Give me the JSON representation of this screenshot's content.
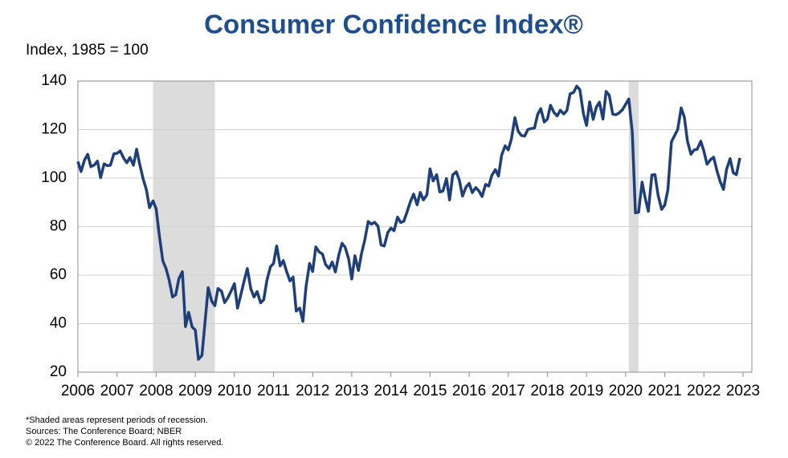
{
  "chart_data": {
    "type": "line",
    "title": "Consumer Confidence Index®",
    "y_axis_label": "Index, 1985 = 100",
    "footnotes": [
      "*Shaded areas represent periods of recession.",
      "Sources: The Conference Board; NBER",
      "© 2022 The Conference Board. All rights reserved."
    ],
    "xlim": [
      2006,
      2023
    ],
    "xticks": [
      2006,
      2007,
      2008,
      2009,
      2010,
      2011,
      2012,
      2013,
      2014,
      2015,
      2016,
      2017,
      2018,
      2019,
      2020,
      2021,
      2022,
      2023
    ],
    "ylim": [
      20,
      140
    ],
    "yticks": [
      20,
      40,
      60,
      80,
      100,
      120,
      140
    ],
    "grid": true,
    "recessions": [
      [
        2007.92,
        2009.5
      ],
      [
        2020.08,
        2020.33
      ]
    ],
    "recession_color": "#dcdcdc",
    "x": [
      2006.0,
      2006.08,
      2006.17,
      2006.25,
      2006.33,
      2006.42,
      2006.5,
      2006.58,
      2006.67,
      2006.75,
      2006.83,
      2006.92,
      2007.0,
      2007.08,
      2007.17,
      2007.25,
      2007.33,
      2007.42,
      2007.5,
      2007.58,
      2007.67,
      2007.75,
      2007.83,
      2007.92,
      2008.0,
      2008.08,
      2008.17,
      2008.25,
      2008.33,
      2008.42,
      2008.5,
      2008.58,
      2008.67,
      2008.75,
      2008.83,
      2008.92,
      2009.0,
      2009.08,
      2009.17,
      2009.25,
      2009.33,
      2009.42,
      2009.5,
      2009.58,
      2009.67,
      2009.75,
      2009.83,
      2009.92,
      2010.0,
      2010.08,
      2010.17,
      2010.25,
      2010.33,
      2010.42,
      2010.5,
      2010.58,
      2010.67,
      2010.75,
      2010.83,
      2010.92,
      2011.0,
      2011.08,
      2011.17,
      2011.25,
      2011.33,
      2011.42,
      2011.5,
      2011.58,
      2011.67,
      2011.75,
      2011.83,
      2011.92,
      2012.0,
      2012.08,
      2012.17,
      2012.25,
      2012.33,
      2012.42,
      2012.5,
      2012.58,
      2012.67,
      2012.75,
      2012.83,
      2012.92,
      2013.0,
      2013.08,
      2013.17,
      2013.25,
      2013.33,
      2013.42,
      2013.5,
      2013.58,
      2013.67,
      2013.75,
      2013.83,
      2013.92,
      2014.0,
      2014.08,
      2014.17,
      2014.25,
      2014.33,
      2014.42,
      2014.5,
      2014.58,
      2014.67,
      2014.75,
      2014.83,
      2014.92,
      2015.0,
      2015.08,
      2015.17,
      2015.25,
      2015.33,
      2015.42,
      2015.5,
      2015.58,
      2015.67,
      2015.75,
      2015.83,
      2015.92,
      2016.0,
      2016.08,
      2016.17,
      2016.25,
      2016.33,
      2016.42,
      2016.5,
      2016.58,
      2016.67,
      2016.75,
      2016.83,
      2016.92,
      2017.0,
      2017.08,
      2017.17,
      2017.25,
      2017.33,
      2017.42,
      2017.5,
      2017.58,
      2017.67,
      2017.75,
      2017.83,
      2017.92,
      2018.0,
      2018.08,
      2018.17,
      2018.25,
      2018.33,
      2018.42,
      2018.5,
      2018.58,
      2018.67,
      2018.75,
      2018.83,
      2018.92,
      2019.0,
      2019.08,
      2019.17,
      2019.25,
      2019.33,
      2019.42,
      2019.5,
      2019.58,
      2019.67,
      2019.75,
      2019.83,
      2019.92,
      2020.0,
      2020.08,
      2020.17,
      2020.25,
      2020.33,
      2020.42,
      2020.5,
      2020.58,
      2020.67,
      2020.75,
      2020.83,
      2020.92,
      2021.0,
      2021.08,
      2021.17,
      2021.25,
      2021.33,
      2021.42,
      2021.5,
      2021.58,
      2021.67,
      2021.75,
      2021.83,
      2021.92,
      2022.0,
      2022.08,
      2022.17,
      2022.25,
      2022.33,
      2022.42,
      2022.5,
      2022.58,
      2022.67,
      2022.75,
      2022.83,
      2022.92
    ],
    "series": [
      {
        "color": "#1f3f7a",
        "values": [
          106.8,
          102.7,
          107.5,
          109.8,
          104.7,
          105.4,
          107.0,
          100.2,
          105.9,
          105.1,
          105.3,
          110.0,
          110.2,
          111.2,
          108.2,
          106.3,
          108.5,
          105.3,
          111.9,
          105.6,
          99.5,
          95.2,
          87.8,
          90.6,
          87.3,
          76.4,
          65.9,
          62.8,
          58.1,
          51.0,
          51.9,
          58.5,
          61.4,
          38.8,
          44.7,
          38.6,
          37.4,
          25.3,
          26.9,
          40.8,
          54.8,
          49.3,
          47.4,
          54.5,
          53.4,
          48.7,
          50.6,
          53.6,
          56.5,
          46.4,
          52.3,
          57.7,
          62.7,
          54.3,
          51.0,
          53.2,
          48.6,
          49.9,
          57.8,
          63.4,
          64.8,
          72.0,
          63.8,
          66.0,
          61.7,
          57.6,
          59.2,
          45.2,
          46.4,
          40.9,
          55.2,
          64.8,
          61.5,
          71.6,
          69.5,
          68.7,
          64.4,
          62.7,
          65.4,
          61.3,
          68.4,
          73.1,
          71.5,
          66.7,
          58.4,
          68.0,
          61.9,
          69.0,
          74.3,
          82.1,
          81.0,
          81.8,
          80.2,
          72.4,
          72.0,
          77.5,
          79.4,
          78.3,
          83.9,
          81.7,
          82.2,
          86.4,
          90.3,
          93.4,
          89.0,
          94.1,
          91.0,
          93.1,
          103.8,
          98.8,
          101.4,
          94.3,
          94.6,
          99.8,
          91.0,
          101.3,
          102.6,
          99.1,
          92.6,
          96.3,
          97.8,
          94.0,
          96.1,
          94.7,
          92.4,
          97.4,
          96.7,
          101.1,
          103.5,
          100.8,
          109.4,
          113.3,
          111.6,
          116.1,
          124.9,
          119.4,
          117.6,
          117.3,
          120.0,
          120.4,
          120.6,
          126.2,
          128.6,
          123.1,
          124.3,
          130.0,
          127.0,
          125.6,
          128.0,
          126.4,
          127.9,
          134.7,
          135.3,
          137.9,
          136.4,
          126.6,
          121.7,
          131.4,
          124.2,
          129.2,
          131.3,
          124.3,
          135.7,
          134.2,
          126.3,
          126.1,
          126.8,
          128.2,
          130.4,
          132.6,
          118.8,
          85.7,
          85.9,
          98.3,
          91.7,
          86.3,
          101.3,
          101.4,
          92.9,
          87.1,
          88.9,
          95.2,
          114.9,
          117.5,
          120.0,
          128.9,
          125.1,
          115.2,
          109.8,
          111.6,
          111.9,
          115.2,
          111.1,
          105.7,
          107.6,
          108.6,
          103.2,
          98.4,
          95.3,
          103.6,
          108.0,
          102.2,
          101.4,
          108.3
        ]
      }
    ]
  }
}
